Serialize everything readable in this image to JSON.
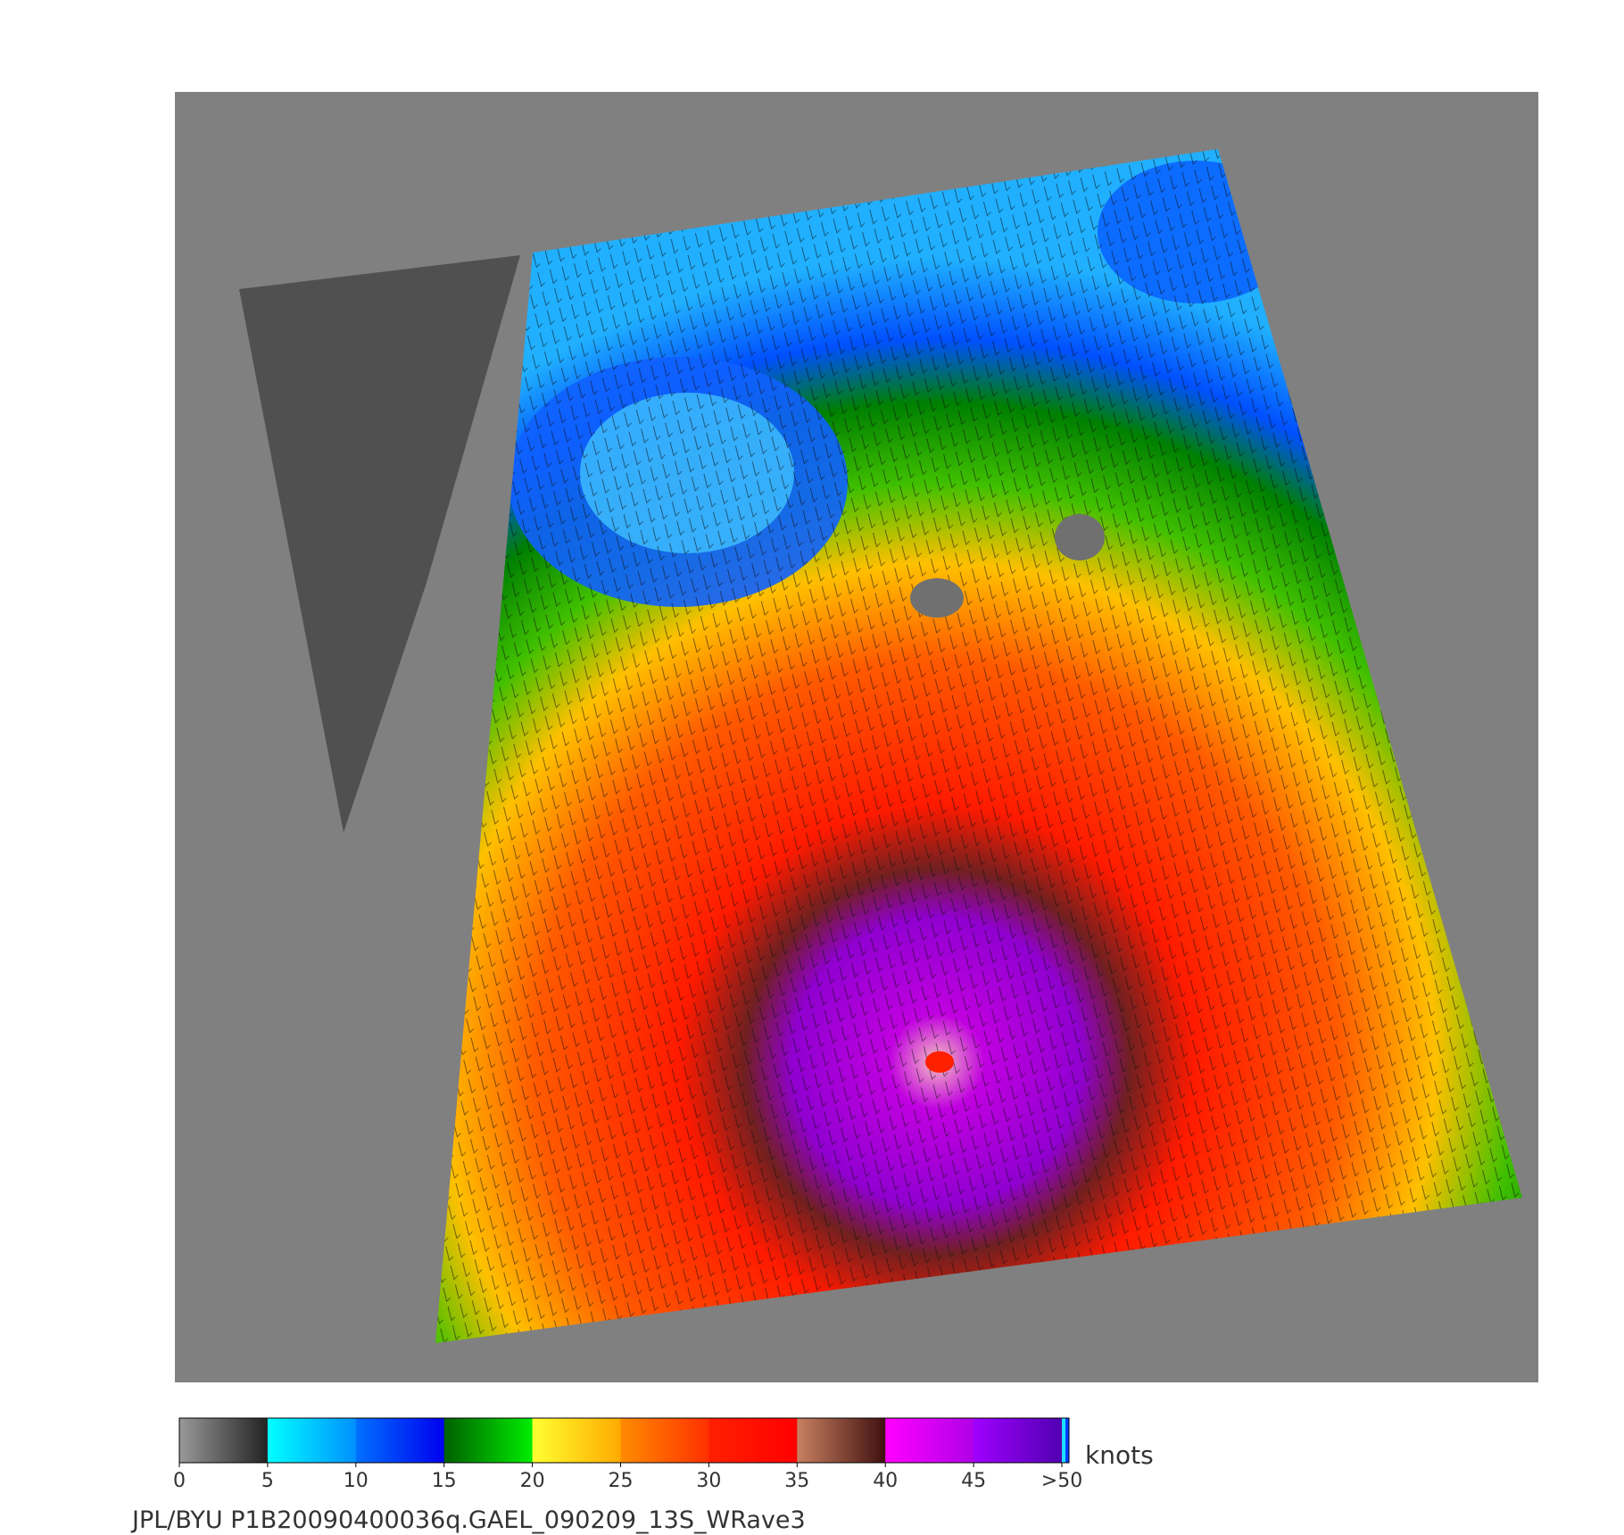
{
  "colorbar": {
    "unit": "knots",
    "ticks": [
      0,
      5,
      10,
      15,
      20,
      25,
      30,
      35,
      40,
      45,
      {
        "value": 50,
        "label": ">50"
      }
    ],
    "colors": [
      [
        "#999999",
        "#222222"
      ],
      [
        "#00ffff",
        "#0090ff"
      ],
      [
        "#0070ff",
        "#0000ee"
      ],
      [
        "#006000",
        "#00ee00"
      ],
      [
        "#ffff30",
        "#ffaa00"
      ],
      [
        "#ff8c00",
        "#ff3000"
      ],
      [
        "#ff2000",
        "#ff0000"
      ],
      [
        "#c88060",
        "#401010"
      ],
      [
        "#ff00ff",
        "#b000e8"
      ],
      [
        "#a000ff",
        "#5000b0"
      ]
    ]
  },
  "footer": "JPL/BYU  P1B20090400036q.GAEL_090209_13S_WRave3"
}
